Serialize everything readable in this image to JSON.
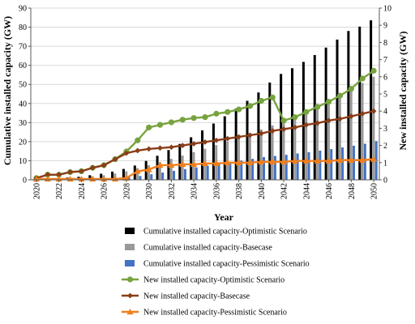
{
  "chart_data": {
    "type": "bar",
    "xlabel": "Year",
    "ylabel_left": "Cumulative installed capacity (GW)",
    "ylabel_right": "New installed capacity (GW)",
    "ylim_left": [
      0,
      90
    ],
    "ylim_right": [
      0,
      10
    ],
    "yticks_left": [
      "0",
      "10",
      "20",
      "30",
      "40",
      "50",
      "60",
      "70",
      "80",
      "90"
    ],
    "yticks_right": [
      "0",
      "1",
      "2",
      "3",
      "4",
      "5",
      "6",
      "7",
      "8",
      "9",
      "10"
    ],
    "x": [
      2020,
      2021,
      2022,
      2023,
      2024,
      2025,
      2026,
      2027,
      2028,
      2029,
      2030,
      2031,
      2032,
      2033,
      2034,
      2035,
      2036,
      2037,
      2038,
      2039,
      2040,
      2041,
      2042,
      2043,
      2044,
      2045,
      2046,
      2047,
      2048,
      2049,
      2050
    ],
    "x_tick_labels": [
      "2020",
      "2022",
      "2024",
      "2026",
      "2028",
      "2030",
      "2032",
      "2034",
      "2036",
      "2038",
      "2040",
      "2042",
      "2044",
      "2046",
      "2048",
      "2050"
    ],
    "grid": true,
    "legend_position": "bottom",
    "bar_series": [
      {
        "name": "Cumulative installed capacity-Optimistic Scenario",
        "color": "#000000",
        "axis": "left",
        "values": [
          0.3,
          0.5,
          0.8,
          1.2,
          1.6,
          2.4,
          3.2,
          4.3,
          5.7,
          7.5,
          9.9,
          12.6,
          15.6,
          18.8,
          22.3,
          25.9,
          29.5,
          33.3,
          37.3,
          41.4,
          45.8,
          51,
          55.5,
          58.5,
          61.8,
          65.4,
          69.3,
          73.5,
          78,
          80.3,
          83.6
        ]
      },
      {
        "name": "Cumulative installed capacity-Basecase",
        "color": "#999999",
        "axis": "left",
        "values": [
          0.2,
          0.4,
          0.6,
          0.9,
          1.2,
          1.8,
          2.4,
          3.3,
          4.5,
          6.1,
          7.7,
          9.3,
          11,
          12.7,
          14.5,
          16.3,
          18.2,
          20.1,
          22.1,
          24.2,
          26.4,
          28.5,
          30.9,
          33.4,
          36,
          38.7,
          41.5,
          44.5,
          47.5,
          50.8,
          54
        ]
      },
      {
        "name": "Cumulative installed capacity-Pessimistic Scenario",
        "color": "#4472c4",
        "axis": "left",
        "values": [
          0.1,
          0.2,
          0.3,
          0.4,
          0.5,
          0.6,
          0.8,
          1,
          1.4,
          2,
          2.9,
          3.8,
          4.7,
          5.6,
          6.5,
          7.4,
          8.3,
          9.2,
          10.1,
          11,
          11.9,
          12.5,
          13.1,
          13.8,
          14.5,
          15.3,
          16.1,
          17,
          17.9,
          18.9,
          20.3
        ]
      }
    ],
    "line_series": [
      {
        "name": "New installed capacity-Optimistic Scenario",
        "color": "#77a33f",
        "marker": "circle",
        "axis": "right",
        "values": [
          0.1,
          0.3,
          0.3,
          0.45,
          0.5,
          0.7,
          0.85,
          1.2,
          1.65,
          2.3,
          3.05,
          3.2,
          3.35,
          3.5,
          3.6,
          3.65,
          3.85,
          3.95,
          4.1,
          4.3,
          4.6,
          4.8,
          3.45,
          3.65,
          3.95,
          4.25,
          4.55,
          4.9,
          5.3,
          5.9,
          6.35
        ]
      },
      {
        "name": "New installed capacity-Basecase",
        "color": "#8b3d18",
        "marker": "diamond",
        "axis": "right",
        "values": [
          0.1,
          0.3,
          0.3,
          0.45,
          0.5,
          0.7,
          0.85,
          1.2,
          1.55,
          1.7,
          1.8,
          1.85,
          1.9,
          2,
          2.1,
          2.2,
          2.3,
          2.4,
          2.5,
          2.6,
          2.7,
          2.85,
          2.95,
          3.05,
          3.2,
          3.3,
          3.45,
          3.55,
          3.7,
          3.85,
          4
        ]
      },
      {
        "name": "New installed capacity-Pessimistic Scenario",
        "color": "#f07f1e",
        "marker": "triangle",
        "axis": "right",
        "values": [
          0.05,
          0.05,
          0.05,
          0.05,
          0.05,
          0.05,
          0.05,
          0.05,
          0.1,
          0.5,
          0.6,
          0.85,
          0.85,
          0.9,
          0.9,
          0.95,
          0.95,
          1,
          1,
          1,
          1.05,
          1.05,
          1.05,
          1.1,
          1.1,
          1.1,
          1.1,
          1.15,
          1.15,
          1.15,
          1.2
        ]
      }
    ]
  }
}
